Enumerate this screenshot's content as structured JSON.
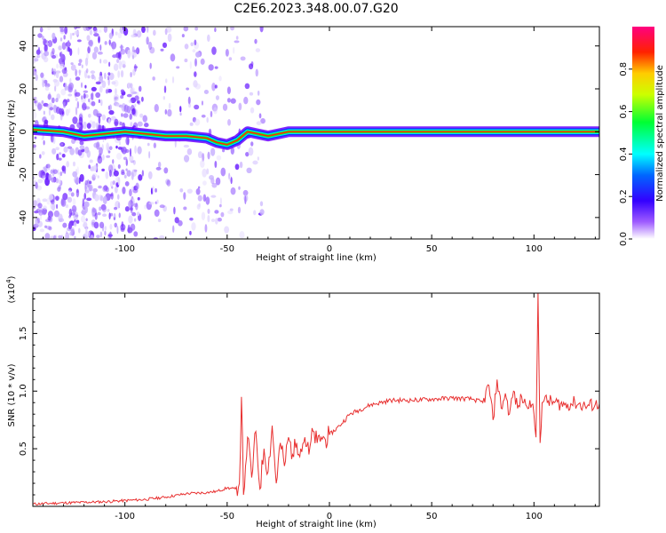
{
  "title": "C2E6.2023.348.00.07.G20",
  "chart_data": [
    {
      "type": "heatmap",
      "xlabel": "Height of straight line (km)",
      "ylabel": "Frequency (Hz)",
      "xlim": [
        -145,
        132
      ],
      "ylim": [
        -50,
        49
      ],
      "x_ticks": [
        -100,
        -50,
        0,
        50,
        100
      ],
      "y_ticks": [
        -40,
        -20,
        0,
        20,
        40
      ],
      "colorbar": {
        "label": "Normalized spectral amplitude",
        "range": [
          0,
          1
        ],
        "ticks": [
          "0.0",
          "0.2",
          "0.4",
          "0.6",
          "0.8"
        ],
        "colors": [
          "#ffffff",
          "#7f00ff",
          "#0000ff",
          "#00ffff",
          "#00ff00",
          "#ffff00",
          "#ff0000",
          "#ff0080"
        ]
      },
      "ridge": {
        "x": [
          -145,
          -130,
          -120,
          -110,
          -100,
          -90,
          -80,
          -70,
          -60,
          -55,
          -50,
          -45,
          -40,
          -35,
          -30,
          -25,
          -20,
          -10,
          0,
          10,
          50,
          100,
          105,
          132
        ],
        "freq": [
          1,
          0,
          -2,
          -1,
          0,
          -1,
          -2,
          -2,
          -3,
          -5,
          -6,
          -4,
          0,
          -1,
          -2,
          -1,
          0,
          0,
          0,
          0,
          0,
          0,
          0,
          0
        ],
        "amplitude": [
          0.3,
          0.35,
          0.4,
          0.45,
          0.5,
          0.6,
          0.7,
          0.72,
          0.72,
          0.6,
          0.55,
          0.6,
          0.65,
          0.7,
          0.75,
          0.8,
          0.85,
          0.9,
          0.95,
          0.95,
          1.0,
          0.95,
          0.9,
          0.9
        ]
      }
    },
    {
      "type": "line",
      "xlabel": "Height of straight line (km)",
      "ylabel": "SNR (10 * v/v)",
      "y_multiplier": "(x10^4)",
      "xlim": [
        -145,
        132
      ],
      "ylim": [
        0,
        1.85
      ],
      "x_ticks": [
        -100,
        -50,
        0,
        50,
        100
      ],
      "y_ticks": [
        0.5,
        1.0,
        1.5
      ],
      "series": [
        {
          "color": "#e83030",
          "x": [
            -145,
            -130,
            -110,
            -90,
            -80,
            -70,
            -60,
            -55,
            -50,
            -46,
            -44,
            -43,
            -42,
            -41,
            -40,
            -38,
            -36,
            -34,
            -32,
            -30,
            -28,
            -26,
            -24,
            -22,
            -20,
            -18,
            -16,
            -14,
            -12,
            -10,
            -8,
            -6,
            -4,
            -2,
            0,
            5,
            10,
            20,
            30,
            40,
            50,
            60,
            70,
            75,
            78,
            80,
            82,
            84,
            86,
            88,
            90,
            92,
            94,
            96,
            98,
            100,
            101,
            102,
            103,
            104,
            105,
            110,
            115,
            120,
            125,
            132
          ],
          "values": [
            0.02,
            0.03,
            0.04,
            0.06,
            0.08,
            0.11,
            0.12,
            0.13,
            0.16,
            0.15,
            0.2,
            0.95,
            0.1,
            0.35,
            0.6,
            0.25,
            0.65,
            0.15,
            0.5,
            0.3,
            0.7,
            0.2,
            0.55,
            0.35,
            0.6,
            0.45,
            0.55,
            0.5,
            0.6,
            0.45,
            0.65,
            0.55,
            0.6,
            0.58,
            0.62,
            0.7,
            0.8,
            0.88,
            0.92,
            0.92,
            0.93,
            0.94,
            0.93,
            0.9,
            1.05,
            0.75,
            1.1,
            0.85,
            0.98,
            0.8,
            1.0,
            0.85,
            0.95,
            0.88,
            0.92,
            0.8,
            0.6,
            1.85,
            0.55,
            0.9,
            0.92,
            0.9,
            0.88,
            0.9,
            0.87,
            0.89
          ]
        }
      ]
    }
  ]
}
